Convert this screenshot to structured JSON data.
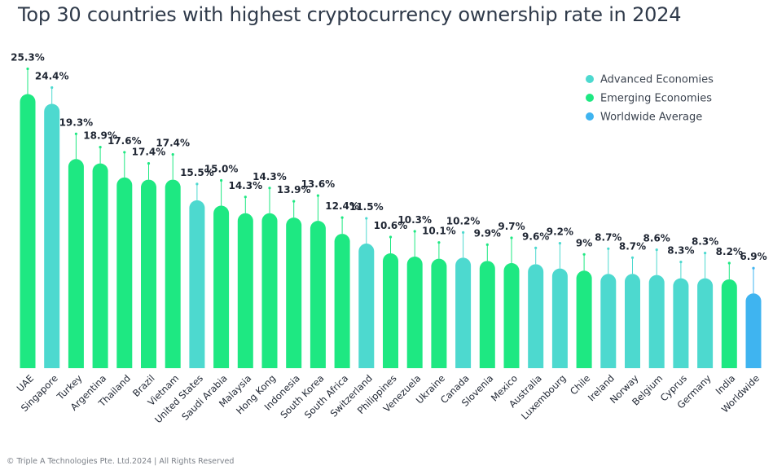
{
  "title": "Top 30 countries with highest cryptocurrency ownership rate in 2024",
  "footer": "© Triple A Technologies Pte. Ltd.2024 | All Rights Reserved",
  "colors": {
    "advanced": "#4dd9cf",
    "emerging": "#1ee882",
    "worldwide": "#3fb4f0"
  },
  "chart_data": {
    "type": "bar",
    "title": "Top 30 countries with highest cryptocurrency ownership rate in 2024",
    "xlabel": "",
    "ylabel": "",
    "ylim": [
      0,
      26
    ],
    "grid": false,
    "legend_position": "top-right",
    "legend": [
      {
        "key": "advanced",
        "label": "Advanced Economies"
      },
      {
        "key": "emerging",
        "label": "Emerging Economies"
      },
      {
        "key": "worldwide",
        "label": "Worldwide Average"
      }
    ],
    "categories": [
      "UAE",
      "Singapore",
      "Turkey",
      "Argentina",
      "Thailand",
      "Brazil",
      "Vietnam",
      "United States",
      "Saudi Arabia",
      "Malaysia",
      "Hong Kong",
      "Indonesia",
      "South Korea",
      "South Africa",
      "Switzerland",
      "Philippines",
      "Venezuela",
      "Ukraine",
      "Canada",
      "Slovenia",
      "Mexico",
      "Australia",
      "Luxembourg",
      "Chile",
      "Ireland",
      "Norway",
      "Belgium",
      "Cyprus",
      "Germany",
      "India",
      "Worldwide"
    ],
    "values": [
      25.3,
      24.4,
      19.3,
      18.9,
      17.6,
      17.4,
      17.4,
      15.5,
      15.0,
      14.3,
      14.3,
      13.9,
      13.6,
      12.4,
      11.5,
      10.6,
      10.3,
      10.1,
      10.2,
      9.9,
      9.7,
      9.6,
      9.2,
      9,
      8.7,
      8.7,
      8.6,
      8.3,
      8.3,
      8.2,
      6.9
    ],
    "value_labels": [
      "25.3%",
      "24.4%",
      "19.3%",
      "18.9%",
      "17.6%",
      "17.4%",
      "17.4%",
      "15.5%",
      "15.0%",
      "14.3%",
      "14.3%",
      "13.9%",
      "13.6%",
      "12.4%",
      "11.5%",
      "10.6%",
      "10.3%",
      "10.1%",
      "10.2%",
      "9.9%",
      "9.7%",
      "9.6%",
      "9.2%",
      "9%",
      "8.7%",
      "8.7%",
      "8.6%",
      "8.3%",
      "8.3%",
      "8.2%",
      "6.9%"
    ],
    "groups": [
      "emerging",
      "advanced",
      "emerging",
      "emerging",
      "emerging",
      "emerging",
      "emerging",
      "advanced",
      "emerging",
      "emerging",
      "emerging",
      "emerging",
      "emerging",
      "emerging",
      "advanced",
      "emerging",
      "emerging",
      "emerging",
      "advanced",
      "emerging",
      "emerging",
      "advanced",
      "advanced",
      "emerging",
      "advanced",
      "advanced",
      "advanced",
      "advanced",
      "advanced",
      "emerging",
      "worldwide"
    ]
  }
}
